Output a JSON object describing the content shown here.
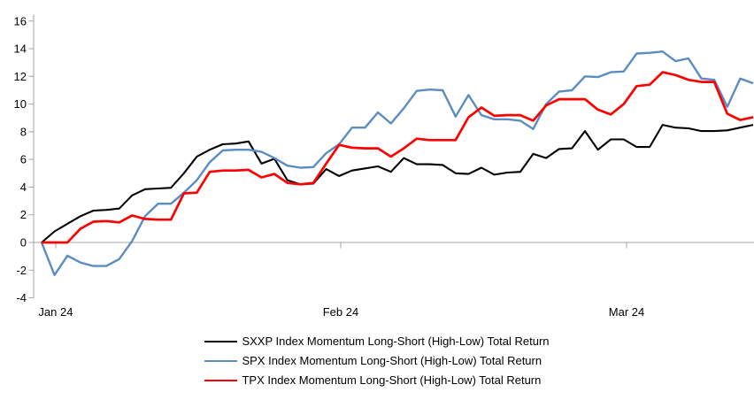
{
  "chart_data": {
    "type": "line",
    "title": "",
    "xlabel": "",
    "ylabel": "",
    "ylim": [
      -4,
      16
    ],
    "y_ticks": [
      16,
      14,
      12,
      10,
      8,
      6,
      4,
      2,
      0,
      -2,
      -4
    ],
    "x_tick_labels": [
      "Jan 24",
      "Feb 24",
      "Mar 24"
    ],
    "x_tick_indices": [
      1.09,
      23.12,
      45.22
    ],
    "n_points": 56,
    "grid": "zero-line-only",
    "legend_position": "bottom-center",
    "axis_color": "#A6A6A6",
    "series": [
      {
        "name": "SXXP Index Momentum Long-Short (High-Low) Total Return",
        "color": "#000000",
        "values": [
          0.0,
          0.8,
          1.35,
          1.9,
          2.3,
          2.35,
          2.45,
          3.4,
          3.85,
          3.9,
          3.95,
          5.0,
          6.2,
          6.7,
          7.1,
          7.15,
          7.3,
          5.7,
          6.05,
          4.5,
          4.2,
          4.25,
          5.3,
          4.8,
          5.2,
          5.35,
          5.5,
          5.1,
          6.1,
          5.65,
          5.65,
          5.6,
          5.0,
          4.95,
          5.4,
          4.9,
          5.05,
          5.1,
          6.4,
          6.1,
          6.75,
          6.8,
          8.05,
          6.7,
          7.45,
          7.45,
          6.9,
          6.9,
          8.5,
          8.3,
          8.25,
          8.05,
          8.05,
          8.1,
          8.3,
          8.5
        ]
      },
      {
        "name": "SPX Index Momentum Long-Short (High-Low) Total Return",
        "color": "#5B8DC3",
        "values": [
          0.0,
          -2.35,
          -0.95,
          -1.45,
          -1.7,
          -1.7,
          -1.2,
          0.1,
          1.9,
          2.8,
          2.8,
          3.6,
          4.5,
          5.8,
          6.65,
          6.7,
          6.7,
          6.55,
          6.1,
          5.55,
          5.4,
          5.45,
          6.45,
          7.1,
          8.3,
          8.3,
          9.4,
          8.6,
          9.7,
          10.95,
          11.05,
          11.0,
          9.1,
          10.65,
          9.2,
          8.9,
          8.9,
          8.8,
          8.2,
          10.0,
          10.9,
          11.0,
          12.0,
          11.95,
          12.3,
          12.35,
          13.65,
          13.7,
          13.8,
          13.1,
          13.3,
          11.85,
          11.75,
          9.8,
          11.85,
          11.5
        ]
      },
      {
        "name": "TPX Index Momentum Long-Short (High-Low) Total Return",
        "color": "#FF0000",
        "values": [
          0.0,
          0.0,
          0.0,
          1.0,
          1.5,
          1.55,
          1.45,
          1.95,
          1.7,
          1.65,
          1.65,
          3.55,
          3.6,
          5.1,
          5.2,
          5.2,
          5.25,
          4.7,
          4.95,
          4.3,
          4.2,
          4.3,
          5.7,
          7.05,
          6.85,
          6.8,
          6.8,
          6.2,
          6.8,
          7.5,
          7.4,
          7.4,
          7.4,
          9.05,
          9.75,
          9.15,
          9.2,
          9.2,
          8.8,
          9.9,
          10.35,
          10.35,
          10.35,
          9.6,
          9.25,
          10.0,
          11.3,
          11.4,
          12.3,
          12.1,
          11.75,
          11.6,
          11.6,
          9.3,
          8.85,
          9.05
        ]
      }
    ]
  },
  "legend": {
    "items": [
      {
        "label": "SXXP Index Momentum Long-Short (High-Low) Total Return"
      },
      {
        "label": "SPX Index Momentum Long-Short (High-Low) Total Return"
      },
      {
        "label": "TPX Index Momentum Long-Short (High-Low) Total Return"
      }
    ]
  }
}
